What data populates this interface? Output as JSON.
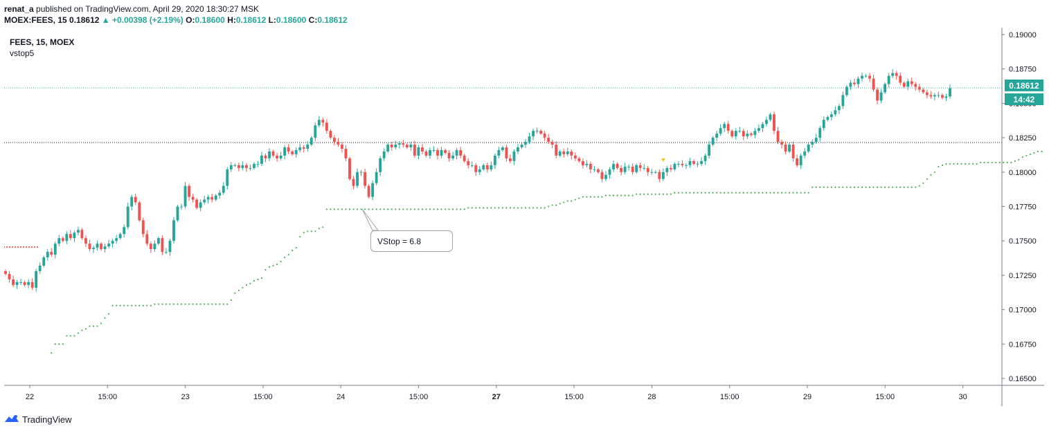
{
  "header": {
    "author": "renat_a",
    "published_text": "published on TradingView.com, April 29, 2020 18:30:27 MSK",
    "symbol": "MOEX:FEES, 15",
    "last": "0.18612",
    "up_icon": "triangle-up-icon",
    "change": "+0.00398 (+2.19%)",
    "o_label": "O:",
    "o_value": "0.18600",
    "h_label": "H:",
    "h_value": "0.18612",
    "l_label": "L:",
    "l_value": "0.18600",
    "c_label": "C:",
    "c_value": "0.18612"
  },
  "legend": {
    "series": "FEES, 15, MOEX",
    "indicator": "vstop5"
  },
  "price_tag": {
    "price": "0.18612",
    "countdown": "14:42"
  },
  "callout": {
    "text": "VStop = 6.8"
  },
  "footer": {
    "brand": "TradingView",
    "logo_icon": "tradingview-logo-icon"
  },
  "colors": {
    "up": "#26a69a",
    "down": "#ef5350",
    "vstop_up": "#4caf50",
    "vstop_down": "#ef5350",
    "axis": "#131722",
    "grid": "#e0e3eb"
  },
  "chart_data": {
    "type": "candlestick",
    "symbol": "MOEX:FEES",
    "interval": "15",
    "y_ticks": [
      "0.19000",
      "0.18750",
      "0.18500",
      "0.18250",
      "0.18000",
      "0.17750",
      "0.17500",
      "0.17250",
      "0.17000",
      "0.16750",
      "0.16500"
    ],
    "x_ticks": [
      "22",
      "15:00",
      "23",
      "15:00",
      "24",
      "15:00",
      "27",
      "15:00",
      "28",
      "15:00",
      "29",
      "15:00",
      "30"
    ],
    "ylim": [
      0.1645,
      0.1905
    ],
    "horizontal_lines": [
      0.18612,
      0.18215
    ],
    "closes": [
      0.1726,
      0.1722,
      0.1718,
      0.172,
      0.172,
      0.1718,
      0.172,
      0.1716,
      0.1728,
      0.1732,
      0.1738,
      0.1742,
      0.174,
      0.1748,
      0.1752,
      0.175,
      0.1755,
      0.1752,
      0.1756,
      0.1758,
      0.1752,
      0.1748,
      0.1744,
      0.1745,
      0.1748,
      0.1744,
      0.1746,
      0.1748,
      0.175,
      0.1752,
      0.1755,
      0.176,
      0.1775,
      0.1782,
      0.1778,
      0.1765,
      0.1755,
      0.1748,
      0.1744,
      0.1748,
      0.1752,
      0.1742,
      0.1742,
      0.175,
      0.1765,
      0.1775,
      0.1775,
      0.179,
      0.1782,
      0.178,
      0.1774,
      0.1778,
      0.178,
      0.1782,
      0.178,
      0.1783,
      0.1785,
      0.179,
      0.1802,
      0.1805,
      0.1805,
      0.1803,
      0.1805,
      0.1803,
      0.1803,
      0.1806,
      0.1806,
      0.1812,
      0.181,
      0.1815,
      0.1812,
      0.181,
      0.1812,
      0.1818,
      0.1815,
      0.1813,
      0.1816,
      0.1818,
      0.1817,
      0.182,
      0.1825,
      0.1834,
      0.1838,
      0.1836,
      0.183,
      0.1825,
      0.1822,
      0.182,
      0.1817,
      0.181,
      0.1795,
      0.179,
      0.18,
      0.18,
      0.179,
      0.1782,
      0.1792,
      0.18,
      0.181,
      0.1815,
      0.182,
      0.1818,
      0.182,
      0.1821,
      0.182,
      0.1818,
      0.182,
      0.1812,
      0.1818,
      0.1815,
      0.1812,
      0.1816,
      0.1816,
      0.1812,
      0.1816,
      0.1814,
      0.181,
      0.1812,
      0.1816,
      0.1812,
      0.1808,
      0.1805,
      0.1805,
      0.18,
      0.1802,
      0.1805,
      0.1802,
      0.1805,
      0.1812,
      0.1816,
      0.1818,
      0.181,
      0.1808,
      0.1815,
      0.1818,
      0.182,
      0.1822,
      0.1826,
      0.183,
      0.183,
      0.1828,
      0.1825,
      0.1822,
      0.182,
      0.1812,
      0.1815,
      0.1813,
      0.1815,
      0.1812,
      0.181,
      0.1808,
      0.1805,
      0.1806,
      0.1802,
      0.1802,
      0.18,
      0.1795,
      0.1798,
      0.1802,
      0.1806,
      0.1803,
      0.18,
      0.1804,
      0.1804,
      0.18,
      0.1805,
      0.1803,
      0.1803,
      0.18,
      0.18,
      0.18,
      0.1795,
      0.18,
      0.1803,
      0.1802,
      0.1806,
      0.1806,
      0.1805,
      0.1805,
      0.1808,
      0.1806,
      0.1806,
      0.1808,
      0.1812,
      0.182,
      0.1825,
      0.1828,
      0.1832,
      0.1835,
      0.183,
      0.1826,
      0.183,
      0.183,
      0.1826,
      0.1828,
      0.1827,
      0.183,
      0.1832,
      0.1835,
      0.1838,
      0.1842,
      0.183,
      0.1822,
      0.182,
      0.1815,
      0.182,
      0.181,
      0.1805,
      0.1812,
      0.1815,
      0.182,
      0.1822,
      0.1825,
      0.1832,
      0.1838,
      0.184,
      0.1842,
      0.1845,
      0.1848,
      0.1856,
      0.1862,
      0.1865,
      0.1864,
      0.1868,
      0.187,
      0.187,
      0.1868,
      0.186,
      0.1852,
      0.1858,
      0.1864,
      0.187,
      0.1872,
      0.187,
      0.1865,
      0.1862,
      0.1866,
      0.1864,
      0.1862,
      0.186,
      0.1858,
      0.1856,
      0.1855,
      0.1856,
      0.1856,
      0.1854,
      0.1855,
      0.1861
    ],
    "vstop": [
      null,
      null,
      null,
      null,
      null,
      null,
      null,
      null,
      null,
      null,
      null,
      null,
      0.16685,
      0.1675,
      0.1675,
      0.1675,
      0.1681,
      0.1681,
      0.1681,
      0.1683,
      0.1685,
      0.1686,
      0.1688,
      0.1688,
      0.1688,
      0.169,
      0.1694,
      0.1697,
      0.1703,
      0.1703,
      0.1703,
      0.1703,
      0.1703,
      0.1703,
      0.1703,
      0.1703,
      0.1703,
      0.1703,
      0.1703,
      0.1704,
      0.1704,
      0.1704,
      0.1704,
      0.1704,
      0.1704,
      0.1704,
      0.1704,
      0.1704,
      0.1704,
      0.1704,
      0.1704,
      0.1704,
      0.1704,
      0.1704,
      0.1704,
      0.1704,
      0.1704,
      0.1704,
      0.1704,
      0.1707,
      0.1712,
      0.1714,
      0.1716,
      0.1718,
      0.1719,
      0.1721,
      0.1722,
      0.1723,
      0.1729,
      0.1731,
      0.1732,
      0.1733,
      0.1735,
      0.1738,
      0.174,
      0.1743,
      0.1745,
      0.1753,
      0.1756,
      0.1757,
      0.1757,
      0.1757,
      0.1759,
      0.176,
      0.1773,
      0.1773,
      0.1773,
      0.1773,
      0.1773,
      0.1773,
      0.1773,
      0.1773,
      0.1773,
      0.1773,
      0.1773,
      0.1773,
      0.1773,
      0.1773,
      0.1773,
      0.1773,
      0.1773,
      0.1773,
      0.1773,
      0.1773,
      0.1773,
      0.1773,
      0.1773,
      0.1773,
      0.1773,
      0.1773,
      0.1773,
      0.1773,
      0.1773,
      0.1773,
      0.1773,
      0.1773,
      0.1773,
      0.1773,
      0.1773,
      0.1773,
      0.1773,
      0.1774,
      0.1774,
      0.1774,
      0.1774,
      0.1774,
      0.1774,
      0.1774,
      0.1774,
      0.1774,
      0.1774,
      0.1774,
      0.1774,
      0.1774,
      0.1774,
      0.1774,
      0.1774,
      0.1774,
      0.1774,
      0.1774,
      0.1774,
      0.1774,
      0.1775,
      0.1776,
      0.1776,
      0.1777,
      0.1778,
      0.1779,
      0.1779,
      0.178,
      0.1781,
      0.1782,
      0.1782,
      0.1782,
      0.1782,
      0.1782,
      0.1782,
      0.1783,
      0.1783,
      0.1783,
      0.1783,
      0.1783,
      0.1783,
      0.1783,
      0.1783,
      0.1784,
      0.1784,
      0.1784,
      0.1784,
      0.1784,
      0.1784,
      0.1784,
      0.1784,
      0.1784,
      0.1784,
      0.1785,
      0.1785,
      0.1785,
      0.1785,
      0.1785,
      0.1785,
      0.1785,
      0.1785,
      0.1785,
      0.1785,
      0.1785,
      0.1785,
      0.1785,
      0.1785,
      0.1785,
      0.1785,
      0.1785,
      0.1785,
      0.1785,
      0.1785,
      0.1785,
      0.1785,
      0.1785,
      0.1785,
      0.1785,
      0.1785,
      0.1785,
      0.1785,
      0.1785,
      0.1785,
      0.1785,
      0.1785,
      0.1785,
      0.1785,
      0.1785,
      0.1785,
      0.1789,
      0.1789,
      0.1789,
      0.1789,
      0.1789,
      0.1789,
      0.1789,
      0.1789,
      0.1789,
      0.1789,
      0.1789,
      0.1789,
      0.1789,
      0.1789,
      0.1789,
      0.1789,
      0.1789,
      0.1789,
      0.1789,
      0.1789,
      0.1789,
      0.1789,
      0.1789,
      0.1789,
      0.1789,
      0.1789,
      0.1789,
      0.1789,
      0.179,
      0.1792,
      0.1795,
      0.1798,
      0.18,
      0.1804,
      0.1805,
      0.1806,
      0.1806,
      0.1806,
      0.1806,
      0.1806,
      0.1806,
      0.1806,
      0.1806,
      0.1806,
      0.1807,
      0.1807,
      0.1807,
      0.1807,
      0.1807,
      0.1807,
      0.1807,
      0.1807,
      0.1807,
      0.1808,
      0.1809,
      0.1811,
      0.1812,
      0.1813,
      0.1814,
      0.1815,
      0.1815
    ],
    "vstop_initial_red": 0.17455
  }
}
